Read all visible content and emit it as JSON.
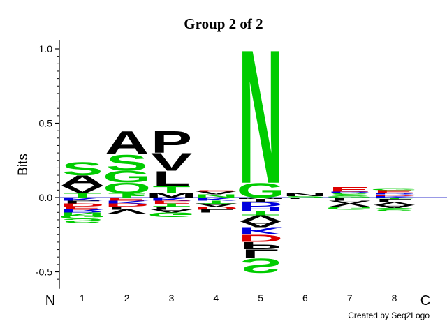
{
  "chart_data": {
    "type": "sequence-logo",
    "title": "Group 2 of 2",
    "ylabel": "Bits",
    "ylim": [
      -0.6,
      1.05
    ],
    "yticks": [
      -0.5,
      0.0,
      0.5,
      1.0
    ],
    "ytick_labels": [
      "-0.5",
      "0.0",
      "0.5",
      "1.0"
    ],
    "positions": [
      "1",
      "2",
      "3",
      "4",
      "5",
      "6",
      "7",
      "8"
    ],
    "n_terminal_label": "N",
    "c_terminal_label": "C",
    "credit": "Created by Seq2Logo",
    "colors": {
      "polar": "#00cc00",
      "hydrophobic": "#000000",
      "acidic": "#dd0000",
      "basic": "#0000dd",
      "baseline": "#3333cc"
    },
    "stacks": [
      {
        "position": "1",
        "above": [
          {
            "letter": "T",
            "bits": 0.03,
            "color": "#00cc00"
          },
          {
            "letter": "V",
            "bits": 0.05,
            "color": "#000000"
          },
          {
            "letter": "A",
            "bits": 0.07,
            "color": "#000000"
          },
          {
            "letter": "S",
            "bits": 0.09,
            "color": "#00cc00"
          }
        ],
        "below": [
          {
            "letter": "K",
            "bits": 0.02,
            "color": "#0000dd"
          },
          {
            "letter": "L",
            "bits": 0.02,
            "color": "#000000"
          },
          {
            "letter": "D",
            "bits": 0.02,
            "color": "#dd0000"
          },
          {
            "letter": "E",
            "bits": 0.02,
            "color": "#dd0000"
          },
          {
            "letter": "R",
            "bits": 0.02,
            "color": "#0000dd"
          },
          {
            "letter": "N",
            "bits": 0.02,
            "color": "#00cc00"
          },
          {
            "letter": "G",
            "bits": 0.02,
            "color": "#00cc00"
          },
          {
            "letter": "S",
            "bits": 0.03,
            "color": "#00cc00"
          }
        ]
      },
      {
        "position": "2",
        "above": [
          {
            "letter": "T",
            "bits": 0.03,
            "color": "#00cc00"
          },
          {
            "letter": "Q",
            "bits": 0.07,
            "color": "#00cc00"
          },
          {
            "letter": "G",
            "bits": 0.08,
            "color": "#00cc00"
          },
          {
            "letter": "S",
            "bits": 0.11,
            "color": "#00cc00"
          },
          {
            "letter": "A",
            "bits": 0.16,
            "color": "#000000"
          }
        ],
        "below": [
          {
            "letter": "E",
            "bits": 0.02,
            "color": "#dd0000"
          },
          {
            "letter": "K",
            "bits": 0.02,
            "color": "#0000dd"
          },
          {
            "letter": "D",
            "bits": 0.02,
            "color": "#dd0000"
          },
          {
            "letter": "L",
            "bits": 0.02,
            "color": "#000000"
          },
          {
            "letter": "V",
            "bits": 0.03,
            "color": "#000000"
          }
        ]
      },
      {
        "position": "3",
        "above": [
          {
            "letter": "M",
            "bits": 0.03,
            "color": "#000000"
          },
          {
            "letter": "T",
            "bits": 0.05,
            "color": "#00cc00"
          },
          {
            "letter": "L",
            "bits": 0.1,
            "color": "#000000"
          },
          {
            "letter": "V",
            "bits": 0.12,
            "color": "#000000"
          },
          {
            "letter": "P",
            "bits": 0.15,
            "color": "#000000"
          }
        ],
        "below": [
          {
            "letter": "K",
            "bits": 0.02,
            "color": "#0000dd"
          },
          {
            "letter": "E",
            "bits": 0.02,
            "color": "#dd0000"
          },
          {
            "letter": "T",
            "bits": 0.02,
            "color": "#00cc00"
          },
          {
            "letter": "L",
            "bits": 0.02,
            "color": "#000000"
          },
          {
            "letter": "A",
            "bits": 0.02,
            "color": "#000000"
          },
          {
            "letter": "G",
            "bits": 0.03,
            "color": "#00cc00"
          }
        ]
      },
      {
        "position": "4",
        "above": [
          {
            "letter": "N",
            "bits": 0.02,
            "color": "#00cc00"
          },
          {
            "letter": "V",
            "bits": 0.02,
            "color": "#000000"
          },
          {
            "letter": "E",
            "bits": 0.01,
            "color": "#dd0000"
          }
        ],
        "below": [
          {
            "letter": "K",
            "bits": 0.02,
            "color": "#0000dd"
          },
          {
            "letter": "T",
            "bits": 0.02,
            "color": "#00cc00"
          },
          {
            "letter": "A",
            "bits": 0.02,
            "color": "#000000"
          },
          {
            "letter": "D",
            "bits": 0.02,
            "color": "#dd0000"
          },
          {
            "letter": "L",
            "bits": 0.02,
            "color": "#000000"
          }
        ]
      },
      {
        "position": "5",
        "above": [
          {
            "letter": "G",
            "bits": 0.1,
            "color": "#00cc00"
          },
          {
            "letter": "N",
            "bits": 0.92,
            "color": "#00cc00"
          }
        ],
        "below": [
          {
            "letter": "M",
            "bits": 0.01,
            "color": "#000000"
          },
          {
            "letter": "T",
            "bits": 0.02,
            "color": "#000000"
          },
          {
            "letter": "D",
            "bits": 0.03,
            "color": "#0000dd"
          },
          {
            "letter": "H",
            "bits": 0.03,
            "color": "#0000dd"
          },
          {
            "letter": "T",
            "bits": 0.03,
            "color": "#00cc00"
          },
          {
            "letter": "V",
            "bits": 0.04,
            "color": "#000000"
          },
          {
            "letter": "A",
            "bits": 0.04,
            "color": "#000000"
          },
          {
            "letter": "K",
            "bits": 0.05,
            "color": "#0000dd"
          },
          {
            "letter": "D",
            "bits": 0.05,
            "color": "#dd0000"
          },
          {
            "letter": "P",
            "bits": 0.05,
            "color": "#000000"
          },
          {
            "letter": "L",
            "bits": 0.06,
            "color": "#000000"
          },
          {
            "letter": "S",
            "bits": 0.1,
            "color": "#00cc00"
          }
        ]
      },
      {
        "position": "6",
        "above": [
          {
            "letter": "S",
            "bits": 0.01,
            "color": "#00cc00"
          },
          {
            "letter": "N",
            "bits": 0.02,
            "color": "#000000"
          }
        ],
        "below": [
          {
            "letter": "L",
            "bits": 0.01,
            "color": "#000000"
          }
        ]
      },
      {
        "position": "7",
        "above": [
          {
            "letter": "G",
            "bits": 0.01,
            "color": "#00cc00"
          },
          {
            "letter": "S",
            "bits": 0.02,
            "color": "#00cc00"
          },
          {
            "letter": "R",
            "bits": 0.01,
            "color": "#0000dd"
          },
          {
            "letter": "E",
            "bits": 0.03,
            "color": "#dd0000"
          }
        ],
        "below": [
          {
            "letter": "L",
            "bits": 0.02,
            "color": "#000000"
          },
          {
            "letter": "A",
            "bits": 0.02,
            "color": "#000000"
          },
          {
            "letter": "V",
            "bits": 0.02,
            "color": "#000000"
          },
          {
            "letter": "G",
            "bits": 0.02,
            "color": "#00cc00"
          }
        ]
      },
      {
        "position": "8",
        "above": [
          {
            "letter": "K",
            "bits": 0.01,
            "color": "#0000dd"
          },
          {
            "letter": "D",
            "bits": 0.01,
            "color": "#dd0000"
          },
          {
            "letter": "R",
            "bits": 0.01,
            "color": "#0000dd"
          },
          {
            "letter": "E",
            "bits": 0.02,
            "color": "#dd0000"
          },
          {
            "letter": "G",
            "bits": 0.01,
            "color": "#00cc00"
          }
        ],
        "below": [
          {
            "letter": "T",
            "bits": 0.01,
            "color": "#00cc00"
          },
          {
            "letter": "L",
            "bits": 0.02,
            "color": "#000000"
          },
          {
            "letter": "V",
            "bits": 0.02,
            "color": "#000000"
          },
          {
            "letter": "A",
            "bits": 0.02,
            "color": "#000000"
          },
          {
            "letter": "S",
            "bits": 0.02,
            "color": "#00cc00"
          }
        ]
      }
    ]
  }
}
